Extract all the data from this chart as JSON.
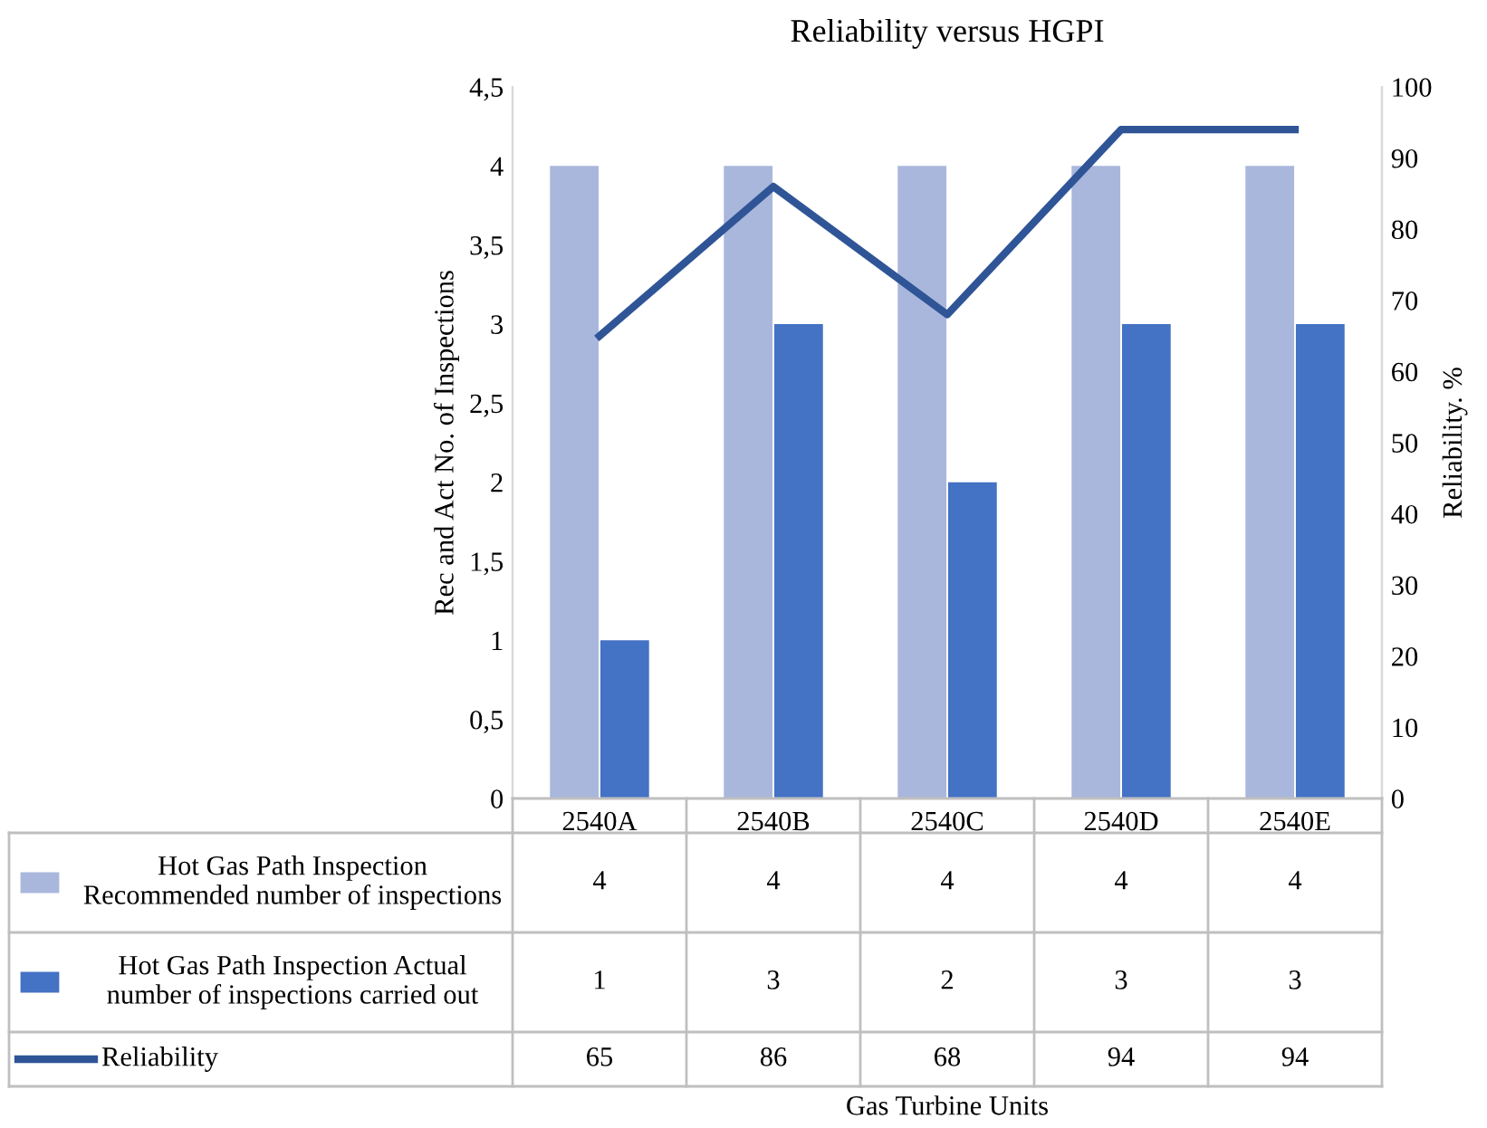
{
  "chart_data": {
    "type": "bar",
    "title": "Reliability versus HGPI",
    "categories": [
      "2540A",
      "2540B",
      "2540C",
      "2540D",
      "2540E"
    ],
    "series": [
      {
        "name": "Hot Gas Path Inspection Recommended number of inspections",
        "color": "#a9b7dc",
        "values": [
          4,
          4,
          4,
          4,
          4
        ]
      },
      {
        "name": "Hot Gas Path Inspection Actual number of inspections carried out",
        "color": "#4472c4",
        "values": [
          1,
          3,
          2,
          3,
          3
        ]
      },
      {
        "name": "Reliability",
        "type": "line",
        "axis": "y2",
        "color": "#2f5597",
        "values": [
          65,
          86,
          68,
          94,
          94
        ]
      }
    ],
    "annotations": [
      "Gas Turbine Units"
    ],
    "ylabel": "Rec and Act No. of Inspections",
    "y2label": "Reliability. %",
    "ylim": [
      0,
      4.5
    ],
    "yticks": [
      0,
      {
        "value": 0.5,
        "label": "0,5"
      },
      1,
      {
        "value": 1.5,
        "label": "1,5"
      },
      2,
      {
        "value": 2.5,
        "label": "2,5"
      },
      3,
      {
        "value": 3.5,
        "label": "3,5"
      },
      4,
      {
        "value": 4.5,
        "label": "4,5"
      }
    ],
    "y2lim": [
      0,
      100
    ],
    "y2ticks": [
      0,
      10,
      20,
      30,
      40,
      50,
      60,
      70,
      80,
      90,
      100
    ],
    "grid": false,
    "legend": "bottom",
    "data_labels": true,
    "marker": "none",
    "line_style": "solid"
  }
}
